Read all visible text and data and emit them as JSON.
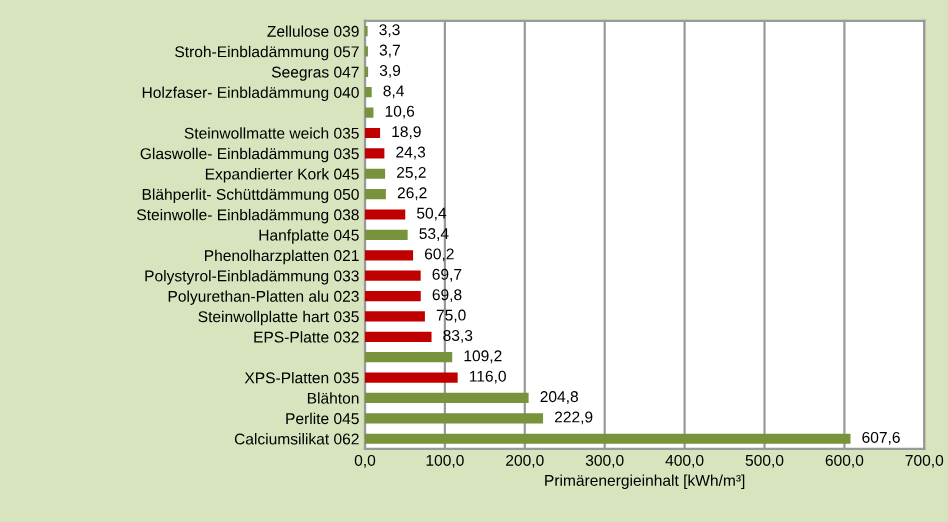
{
  "chart_data": {
    "type": "bar",
    "orientation": "horizontal",
    "xlabel": "Primärenergieinhalt [kWh/m³]",
    "categories": [
      "Zellulose 039",
      "Stroh-Einbladämmung 057",
      "Seegras 047",
      "Holzfaser- Einbladämmung 040",
      null,
      "Steinwollmatte weich 035",
      "Glaswolle- Einbladämmung 035",
      "Expandierter Kork 045",
      "Blähperlit- Schüttdämmung 050",
      "Steinwolle- Einbladämmung 038",
      "Hanfplatte 045",
      "Phenolharzplatten 021",
      "Polystyrol-Einbladämmung 033",
      "Polyurethan-Platten alu 023",
      "Steinwollplatte hart 035",
      "EPS-Platte 032",
      null,
      "XPS-Platten 035",
      "Blähton",
      "Perlite 045",
      "Calciumsilikat 062"
    ],
    "values": [
      3.3,
      3.7,
      3.9,
      8.4,
      10.6,
      18.9,
      24.3,
      25.2,
      26.2,
      50.4,
      53.4,
      60.2,
      69.7,
      69.8,
      75.0,
      83.3,
      109.2,
      116.0,
      204.8,
      222.9,
      607.6
    ],
    "value_labels": [
      "3,3",
      "3,7",
      "3,9",
      "8,4",
      "10,6",
      "18,9",
      "24,3",
      "25,2",
      "26,2",
      "50,4",
      "53,4",
      "60,2",
      "69,7",
      "69,8",
      "75,0",
      "83,3",
      "109,2",
      "116,0",
      "204,8",
      "222,9",
      "607,6"
    ],
    "colors": [
      "#77933c",
      "#77933c",
      "#77933c",
      "#77933c",
      "#77933c",
      "#c00000",
      "#c00000",
      "#77933c",
      "#77933c",
      "#c00000",
      "#77933c",
      "#c00000",
      "#c00000",
      "#c00000",
      "#c00000",
      "#c00000",
      "#77933c",
      "#c00000",
      "#77933c",
      "#77933c",
      "#77933c"
    ],
    "xlim": [
      0,
      700
    ],
    "xticks": [
      {
        "value": 0,
        "label": "0,0"
      },
      {
        "value": 100,
        "label": "100,0"
      },
      {
        "value": 200,
        "label": "200,0"
      },
      {
        "value": 300,
        "label": "300,0"
      },
      {
        "value": 400,
        "label": "400,0"
      },
      {
        "value": 500,
        "label": "500,0"
      },
      {
        "value": 600,
        "label": "600,0"
      },
      {
        "value": 700,
        "label": "700,0"
      }
    ],
    "grid": "x",
    "legend": false
  }
}
